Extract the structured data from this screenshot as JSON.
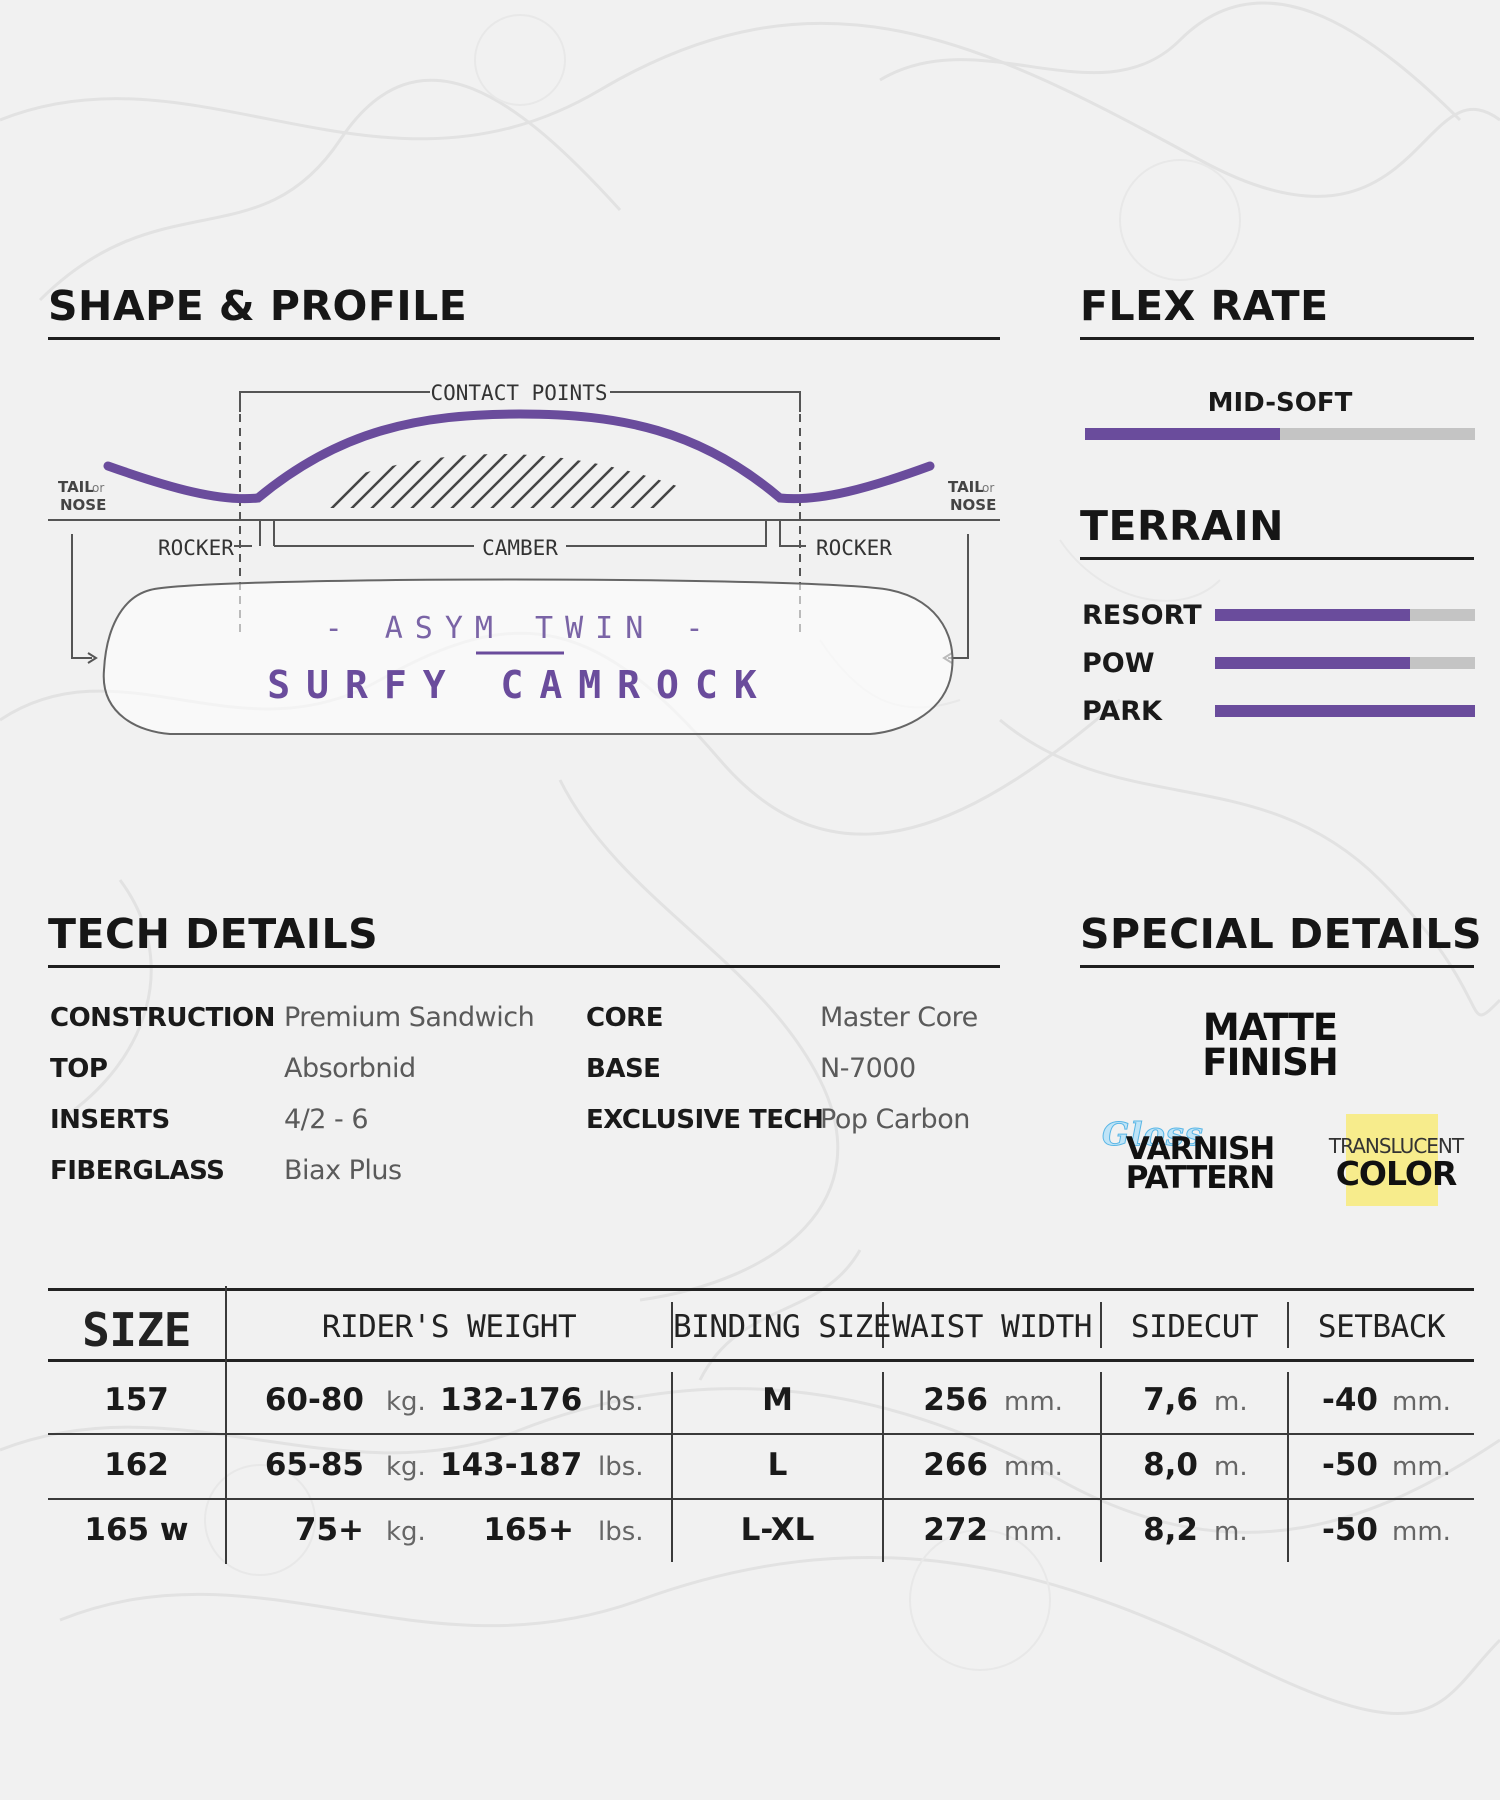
{
  "shape_profile": {
    "title": "SHAPE & PROFILE",
    "labels": {
      "contact_points": "CONTACT POINTS",
      "tail": "TAIL",
      "or": "or",
      "nose": "NOSE",
      "rocker_left": "ROCKER",
      "camber": "CAMBER",
      "rocker_right": "ROCKER"
    },
    "board_shape": "- ASYM TWIN -",
    "board_profile": "SURFY CAMROCK",
    "profile_color": "#6a4c9c"
  },
  "flex_rate": {
    "title": "FLEX RATE",
    "label": "MID-SOFT",
    "level": 0.5
  },
  "terrain": {
    "title": "TERRAIN",
    "items": [
      {
        "label": "RESORT",
        "level": 0.75
      },
      {
        "label": "POW",
        "level": 0.75
      },
      {
        "label": "PARK",
        "level": 1.0
      }
    ]
  },
  "tech_details": {
    "title": "TECH DETAILS",
    "left": [
      {
        "key": "CONSTRUCTION",
        "value": "Premium Sandwich"
      },
      {
        "key": "TOP",
        "value": "Absorbnid"
      },
      {
        "key": "INSERTS",
        "value": "4/2 - 6"
      },
      {
        "key": "FIBERGLASS",
        "value": "Biax Plus"
      }
    ],
    "right": [
      {
        "key": "CORE",
        "value": "Master Core"
      },
      {
        "key": "BASE",
        "value": "N-7000"
      },
      {
        "key": "EXCLUSIVE TECH",
        "value": "Pop Carbon"
      }
    ]
  },
  "special_details": {
    "title": "SPECIAL DETAILS",
    "matte": [
      "MATTE",
      "FINISH"
    ],
    "varnish": {
      "script": "Gloss",
      "lines": [
        "VARNISH",
        "PATTERN"
      ]
    },
    "translucent": {
      "top": "TRANSLUCENT",
      "bottom": "COLOR",
      "highlight": "#f7ec8c"
    }
  },
  "size_table": {
    "headers": {
      "size": "SIZE",
      "weight": "RIDER'S WEIGHT",
      "binding": "BINDING SIZE",
      "waist": "WAIST WIDTH",
      "sidecut": "SIDECUT",
      "setback": "SETBACK"
    },
    "units": {
      "kg": "kg.",
      "lbs": "lbs.",
      "mm": "mm.",
      "m": "m."
    },
    "rows": [
      {
        "size": "157",
        "kg": "60-80",
        "lbs": "132-176",
        "binding": "M",
        "waist": "256",
        "sidecut": "7,6",
        "setback": "-40"
      },
      {
        "size": "162",
        "kg": "65-85",
        "lbs": "143-187",
        "binding": "L",
        "waist": "266",
        "sidecut": "8,0",
        "setback": "-50"
      },
      {
        "size": "165 w",
        "kg": "75+",
        "lbs": "165+",
        "binding": "L-XL",
        "waist": "272",
        "sidecut": "8,2",
        "setback": "-50"
      }
    ]
  }
}
